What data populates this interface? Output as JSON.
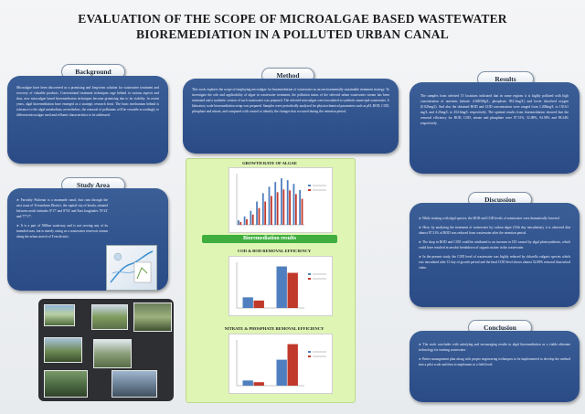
{
  "title_line1": "EVALUATION OF THE SCOPE OF MICROALGAE BASED WASTEWATER",
  "title_line2": "BIOREMEDIATION IN A POLLUTED URBAN CANAL",
  "background": {
    "heading": "Background",
    "text": "Microalgae have been discovered as a promising and long-term solution for wastewater treatment and recovery of valuable products. Conventional treatment techniques rage behind in various aspects and thus, new microalgae based bioremediation techniques become promising due to its viability. In recent years, algal bioremediation have emerged as a strategic research front. The basic mechanism behind is tolerance to the algal metabolism; nevertheless, the removal of pollutants will be versatile accordingly to different microalgae used and effluent characteristics to be addressed."
  },
  "study_area": {
    "heading": "Study Area",
    "bullet1": "➤ Parvathy Puthenar is a manmade canal, that runs through the east coast of Trivandrum District, the capital city of kerala, situated between north latitudes 8°17' and 8°54' and East longitudes 76°41' and 77°17'.",
    "bullet2": "➤ It is a part of 560km waterway and is not serving any of its intended uses, but is merely acting as a wastewater reservoir stream along the urban stretch of Tvm district."
  },
  "method": {
    "heading": "Method",
    "text": "This work explores the scope of employing microalgae for bioremediation of wastewater as an environmentally sustainable treatment strategy. To investigate the role and applicability of algae in wastewater treatment, the pollution status of the selected urban wastewater stream has been estimated and a synthetic version of such wastewater was prepared. The selected microalgae were inoculated to synthetic municipal wastewater. A laboratory scale bioremediation setup was prepared. Samples were periodically analysed for physicochemical parameters such as pH, BOD, COD, phosphate and nitrate, and compared with control to identify the changes that occurred during the retention period."
  },
  "results": {
    "heading": "Results",
    "text": "The samples from selected 15 locations indicated that in some regions it is highly polluted with high concentration of nutrients (nitrate: 4.3605Mg/L, phosphate: 961.5mg/L) and lower dissolved oxygen (0.025mg/l). And also the obtained BOD and COD concentration were ranged from 1.208mg/L to 155.61 mg/L and 4.25mg/L to 452.6mg/L respectively. The optimal results from bioremediation showed that the removal efficiency for BOD, COD, nitrate and phosphate were 87.31%, 52.08%, 94.58% and 98.24% respectively."
  },
  "discussion": {
    "heading": "Discussion",
    "b1": "➤ While treating with algal species, the BOD and COD levels of wastewater were dramatically lowered.",
    "b2": "➤ Here, by analysing the treatment of wastewater by carbon algae (15th day inoculation), it is observed that almost 87.31% of BOD was reduced from wastewater after the retention period.",
    "b3": "➤ The drop in BOD and COD could be attributed to an increase in DO caused by algal photosynthesis, which could have resulted in aerobic breakdown of organic matter in the wastewater.",
    "b4": "➤ In the present study, the COD level of wastewater was highly reduced by chlorella vulgaris species which was inoculated after 15 day of growth period and the final COD level shows almost 52.08% removal than initial value."
  },
  "conclusion": {
    "heading": "Conclusion",
    "b1": "➤ The work concludes with satisfying and encouraging results in algal bioremediation as a viable alternate technology for treating wastewater.",
    "b2": "➤ Better management plan along with proper engineering techniques to be implemented to develop the method into a pilot scale and then to implement in a field level."
  },
  "bioremediation_label": "Bioremediation results",
  "chart_data": [
    {
      "type": "bar",
      "title": "GROWTH RATE OF ALGAE",
      "categories": [
        "1",
        "2",
        "3",
        "4",
        "5",
        "6",
        "7",
        "8",
        "9",
        "10",
        "11"
      ],
      "series": [
        {
          "name": "",
          "color": "#4f7fbf",
          "values": [
            10,
            18,
            30,
            50,
            68,
            82,
            92,
            100,
            96,
            88,
            75
          ]
        },
        {
          "name": "",
          "color": "#c0392b",
          "values": [
            6,
            12,
            22,
            36,
            50,
            62,
            70,
            76,
            74,
            66,
            56
          ]
        }
      ]
    },
    {
      "type": "bar",
      "title": "COD & BOD REMOVAL EFFICIENCY",
      "categories": [
        "",
        ""
      ],
      "series": [
        {
          "name": "",
          "color": "#4f7fbf",
          "values": [
            20,
            78
          ]
        },
        {
          "name": "",
          "color": "#c0392b",
          "values": [
            14,
            66
          ]
        }
      ]
    },
    {
      "type": "bar",
      "title": "NITRATE & PHOSPHATE REMOVAL EFFICIENCY",
      "categories": [
        "",
        ""
      ],
      "series": [
        {
          "name": "",
          "color": "#4f7fbf",
          "values": [
            12,
            60
          ]
        },
        {
          "name": "",
          "color": "#c0392b",
          "values": [
            8,
            96
          ]
        }
      ]
    }
  ]
}
